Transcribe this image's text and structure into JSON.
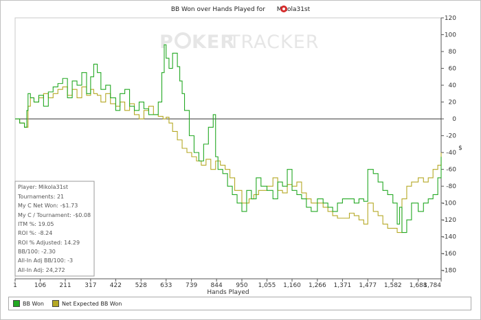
{
  "chart_data": {
    "type": "line",
    "title_prefix": "BB Won over Hands Played for",
    "player_name": "Mikola31st",
    "xlabel": "Hands Played",
    "ylabel": "",
    "xlim": [
      1,
      1784
    ],
    "ylim": [
      -190,
      120
    ],
    "x_ticks": [
      1,
      106,
      211,
      317,
      422,
      528,
      633,
      739,
      844,
      950,
      1055,
      1160,
      1266,
      1371,
      1477,
      1582,
      1688,
      1784
    ],
    "x_tick_labels": [
      "1",
      "106",
      "211",
      "317",
      "422",
      "528",
      "633",
      "739",
      "844",
      "950",
      "1,055",
      "1,160",
      "1,266",
      "1,371",
      "1,477",
      "1,582",
      "1,688",
      "1,784"
    ],
    "y_ticks": [
      120,
      100,
      80,
      60,
      40,
      20,
      0,
      -20,
      -40,
      -60,
      -80,
      -100,
      -120,
      -140,
      -160,
      -180
    ],
    "grid": false,
    "legend_position": "bottom",
    "colors": {
      "bb_won": "#22a822",
      "net_expected": "#b5a824",
      "zero_line": "#333333"
    },
    "series": [
      {
        "name": "BB Won",
        "color": "#22a822",
        "x": [
          1,
          20,
          40,
          50,
          55,
          65,
          80,
          100,
          120,
          140,
          160,
          180,
          200,
          220,
          240,
          260,
          280,
          300,
          317,
          330,
          345,
          360,
          380,
          400,
          422,
          440,
          460,
          480,
          500,
          520,
          540,
          560,
          580,
          600,
          615,
          625,
          633,
          645,
          660,
          680,
          690,
          700,
          710,
          730,
          750,
          770,
          790,
          810,
          830,
          840,
          850,
          870,
          890,
          910,
          930,
          950,
          970,
          990,
          1010,
          1030,
          1055,
          1080,
          1100,
          1120,
          1140,
          1160,
          1180,
          1200,
          1220,
          1240,
          1266,
          1290,
          1310,
          1330,
          1350,
          1371,
          1400,
          1420,
          1440,
          1460,
          1477,
          1500,
          1520,
          1540,
          1560,
          1582,
          1600,
          1610,
          1620,
          1640,
          1660,
          1688,
          1710,
          1730,
          1750,
          1770,
          1784
        ],
        "y": [
          0,
          -5,
          -10,
          10,
          30,
          25,
          20,
          28,
          15,
          32,
          38,
          42,
          48,
          25,
          45,
          40,
          55,
          30,
          50,
          65,
          55,
          35,
          40,
          25,
          10,
          30,
          35,
          15,
          10,
          20,
          12,
          5,
          5,
          20,
          55,
          88,
          72,
          60,
          78,
          62,
          45,
          30,
          10,
          -20,
          -40,
          -50,
          -30,
          -10,
          5,
          -45,
          -60,
          -65,
          -80,
          -90,
          -100,
          -110,
          -85,
          -95,
          -70,
          -80,
          -85,
          -95,
          -75,
          -80,
          -60,
          -85,
          -90,
          -95,
          -105,
          -110,
          -95,
          -100,
          -105,
          -110,
          -100,
          -95,
          -95,
          -100,
          -95,
          -98,
          -60,
          -65,
          -75,
          -85,
          -90,
          -100,
          -125,
          -105,
          -135,
          -120,
          -100,
          -110,
          -100,
          -95,
          -90,
          -70,
          -45
        ]
      },
      {
        "name": "Net Expected BB Won",
        "color": "#b5a824",
        "x": [
          1,
          20,
          40,
          55,
          65,
          80,
          100,
          120,
          140,
          160,
          180,
          200,
          220,
          240,
          260,
          280,
          300,
          317,
          330,
          345,
          360,
          380,
          400,
          422,
          440,
          460,
          480,
          500,
          520,
          540,
          560,
          580,
          600,
          620,
          633,
          645,
          660,
          680,
          700,
          720,
          740,
          760,
          780,
          800,
          820,
          840,
          860,
          880,
          900,
          920,
          950,
          980,
          1000,
          1020,
          1055,
          1080,
          1100,
          1120,
          1140,
          1160,
          1180,
          1200,
          1220,
          1240,
          1266,
          1290,
          1310,
          1330,
          1350,
          1371,
          1400,
          1420,
          1440,
          1460,
          1477,
          1500,
          1520,
          1540,
          1560,
          1582,
          1600,
          1620,
          1640,
          1660,
          1688,
          1710,
          1730,
          1750,
          1770,
          1784
        ],
        "y": [
          0,
          -5,
          -10,
          15,
          25,
          20,
          25,
          30,
          25,
          30,
          35,
          38,
          28,
          35,
          25,
          38,
          28,
          35,
          30,
          28,
          20,
          30,
          18,
          15,
          20,
          10,
          18,
          5,
          0,
          10,
          15,
          5,
          3,
          0,
          2,
          -5,
          -15,
          -25,
          -35,
          -40,
          -45,
          -50,
          -55,
          -48,
          -60,
          -50,
          -55,
          -60,
          -70,
          -85,
          -100,
          -95,
          -90,
          -85,
          -80,
          -70,
          -85,
          -88,
          -78,
          -80,
          -75,
          -88,
          -95,
          -100,
          -100,
          -105,
          -110,
          -115,
          -118,
          -118,
          -112,
          -115,
          -120,
          -125,
          -100,
          -110,
          -115,
          -125,
          -130,
          -130,
          -135,
          -95,
          -80,
          -75,
          -70,
          -75,
          -70,
          -60,
          -55,
          -40
        ]
      }
    ]
  },
  "watermark": {
    "left": "P",
    "middle": "KER",
    "right": "TRACKER"
  },
  "stats": {
    "player": "Player: Mikola31st",
    "tournaments": "Tournaments: 21",
    "net_won": "My C Net Won: -$1.73",
    "per_tournament": "My C / Tournament: -$0.08",
    "itm": "ITM %: 19.05",
    "roi": "ROI %: -8.24",
    "roi_adjusted": "ROI % Adjusted: 14.29",
    "bb100": "BB/100: -2.30",
    "allin_bb100": "All-In Adj BB/100: -3",
    "allin_adj": "All-In Adj: 24,272"
  },
  "legend": {
    "bb_won": "BB Won",
    "net_expected": "Net Expected BB Won"
  }
}
